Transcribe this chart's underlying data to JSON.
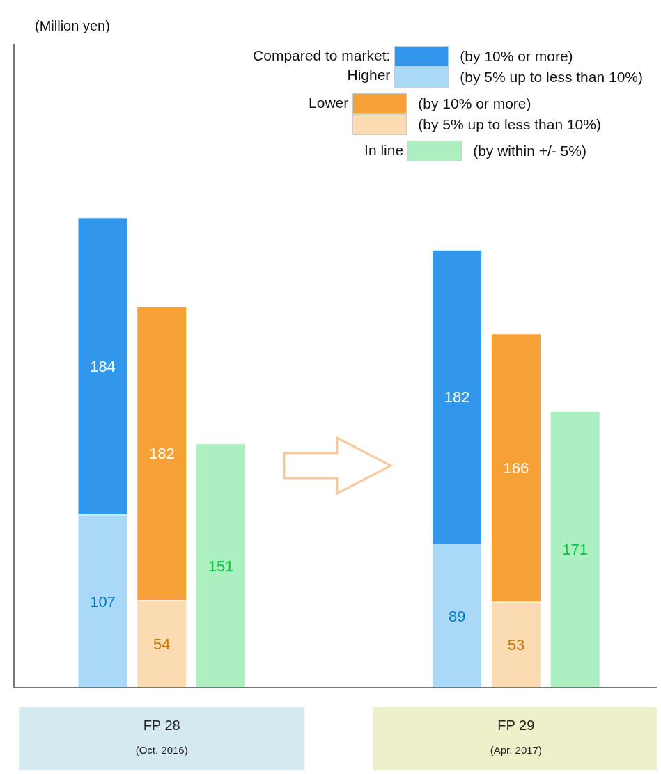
{
  "chart_data": {
    "type": "bar",
    "legend_title": "Compared to market:",
    "annotations": [
      "(Million yen)",
      "Higher",
      "Lower",
      "In line"
    ],
    "legend": "top right",
    "stacked": true,
    "data_labels": true,
    "categories": [
      null,
      "FP 28\n(Oct. 2016)",
      null,
      null,
      null,
      null,
      null,
      "FP 29\n(Apr. 2017)",
      null
    ],
    "series": [
      {
        "name": "(by 5% up to less than 10%)",
        "color": "#a9d9f7",
        "values": [
          107,
          null,
          null,
          null,
          null,
          null,
          89,
          null,
          null
        ]
      },
      {
        "name": "(by 10% or more)",
        "color": "#3296ea",
        "values": [
          184,
          null,
          null,
          null,
          null,
          null,
          182,
          null,
          null
        ]
      },
      {
        "name": "(by 5% up to less than 10%)",
        "color": "#fbdcb2",
        "values": [
          null,
          54,
          null,
          null,
          null,
          null,
          null,
          53,
          null
        ]
      },
      {
        "name": "(by 10% or more)",
        "color": "#f6a038",
        "values": [
          null,
          182,
          null,
          null,
          null,
          null,
          null,
          166,
          null
        ]
      },
      {
        "name": "(by within +/- 5%)",
        "color": "#acf0c2",
        "values": [
          null,
          null,
          151,
          null,
          null,
          null,
          null,
          null,
          171
        ]
      }
    ]
  }
}
